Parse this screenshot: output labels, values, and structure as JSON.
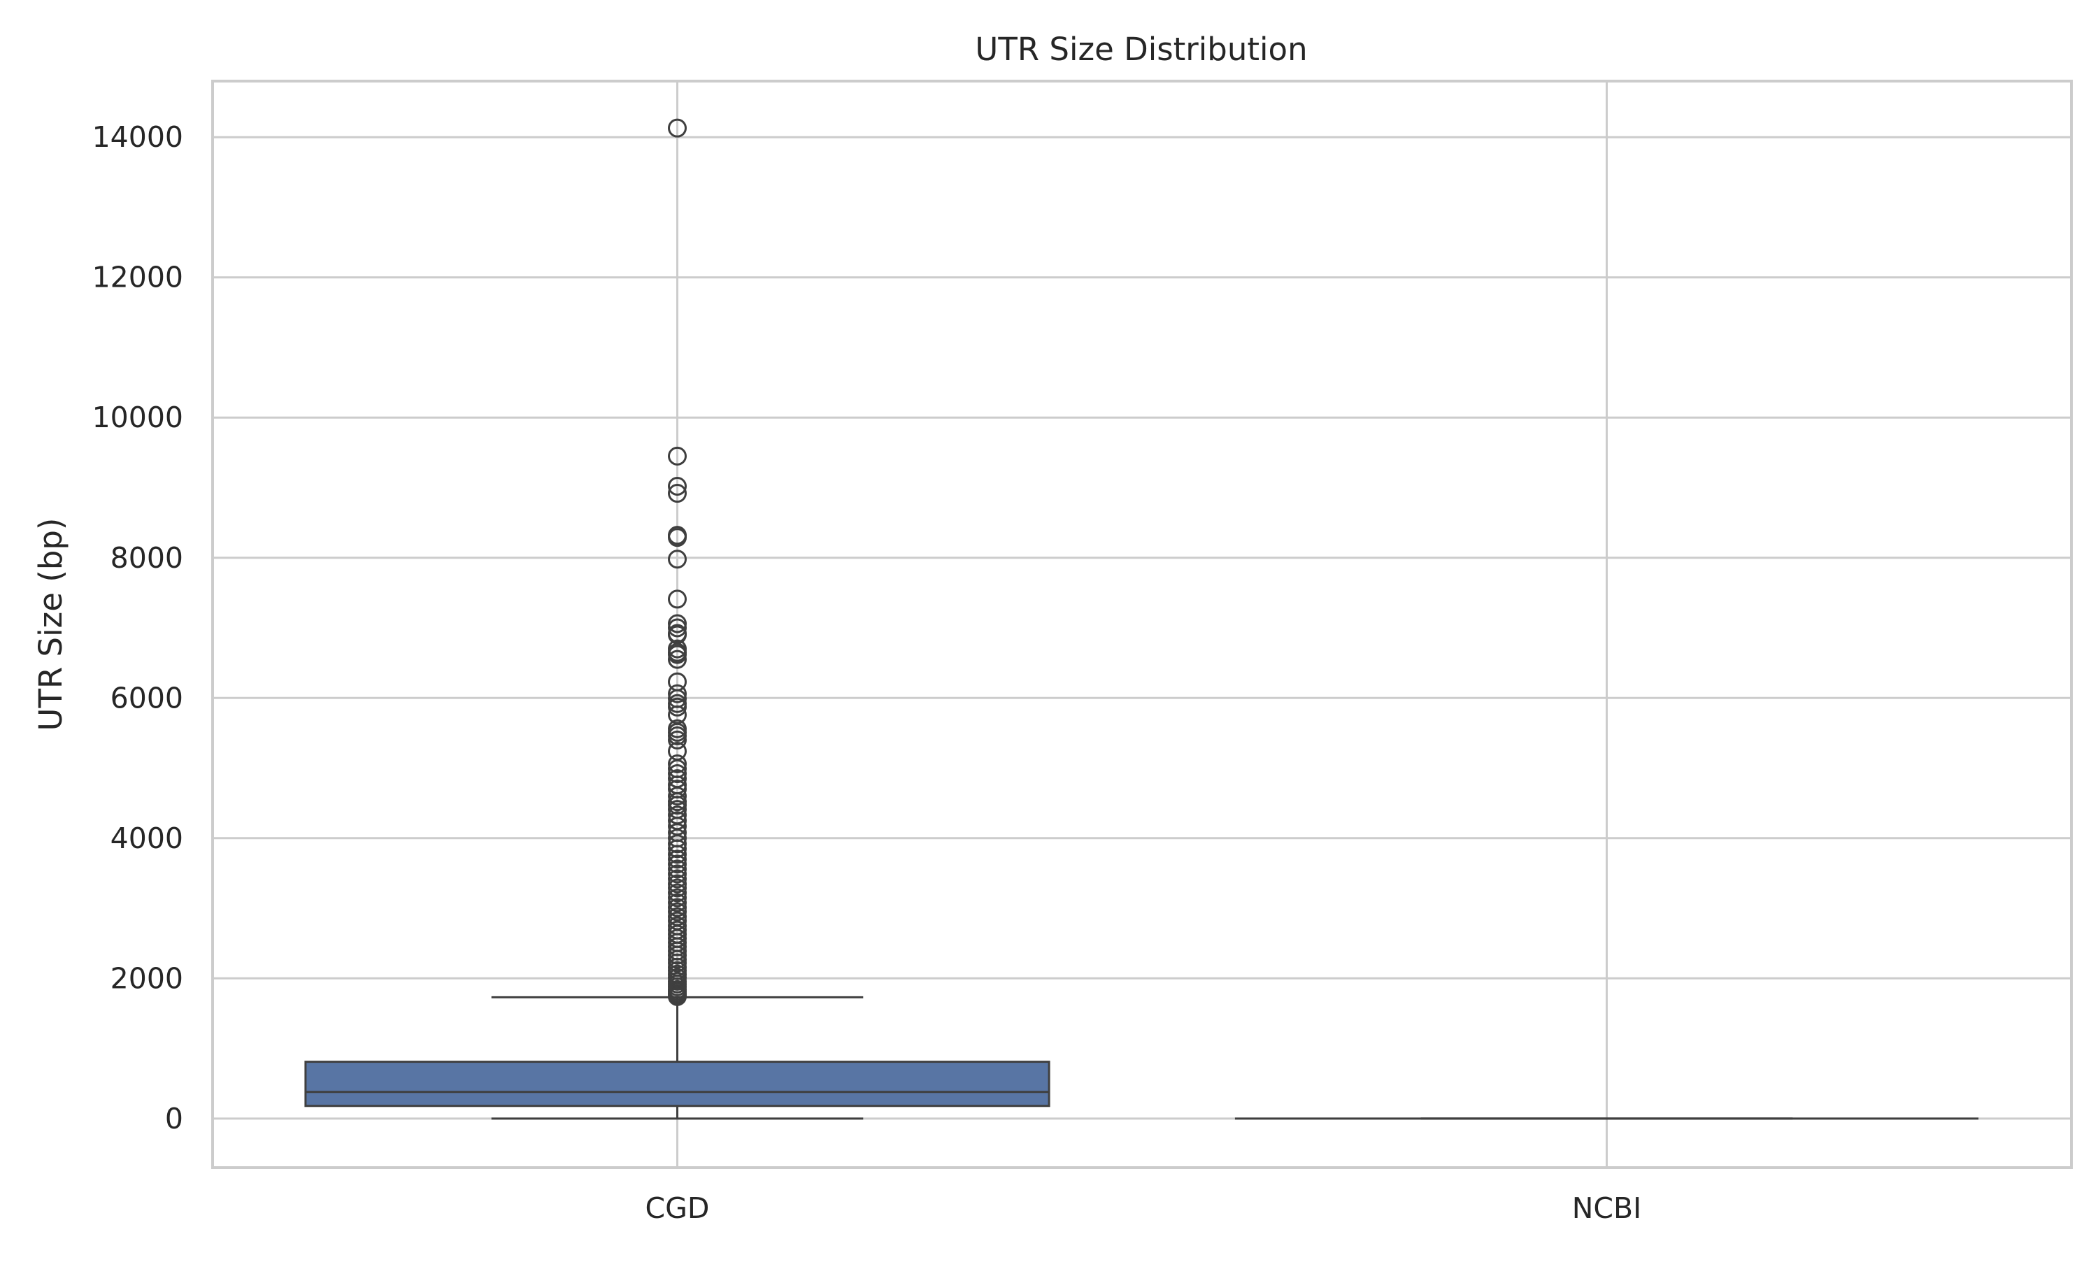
{
  "chart_data": {
    "type": "box",
    "title": "UTR Size Distribution",
    "xlabel": "",
    "ylabel": "UTR Size (bp)",
    "ylim": [
      -700,
      14800
    ],
    "yticks": [
      0,
      2000,
      4000,
      6000,
      8000,
      10000,
      12000,
      14000
    ],
    "grid": true,
    "categories": [
      "CGD",
      "NCBI"
    ],
    "box_color": "#5875a4",
    "edge_color": "#3f3f3f",
    "grid_color": "#cccccc",
    "series": [
      {
        "category": "CGD",
        "whisker_low": 0,
        "q1": 180,
        "median": 380,
        "q3": 810,
        "whisker_high": 1730,
        "outliers": [
          14130,
          9450,
          9020,
          8920,
          8320,
          8290,
          7980,
          7410,
          7060,
          7000,
          6920,
          6900,
          6700,
          6650,
          6620,
          6550,
          6230,
          6060,
          5990,
          5920,
          5870,
          5760,
          5560,
          5510,
          5460,
          5400,
          5240,
          5060,
          4990,
          4920,
          4850,
          4760,
          4700,
          4600,
          4520,
          4470,
          4410,
          4330,
          4250,
          4170,
          4080,
          4000,
          3920,
          3850,
          3770,
          3700,
          3630,
          3560,
          3490,
          3420,
          3350,
          3290,
          3220,
          3150,
          3080,
          3010,
          2950,
          2880,
          2820,
          2750,
          2690,
          2630,
          2570,
          2510,
          2450,
          2390,
          2330,
          2270,
          2220,
          2160,
          2110,
          2060,
          2010,
          1960,
          1920,
          1880,
          1840,
          1810,
          1780,
          1760,
          1740
        ]
      },
      {
        "category": "NCBI",
        "whisker_low": 0,
        "q1": 0,
        "median": 0,
        "q3": 0,
        "whisker_high": 0,
        "outliers": []
      }
    ]
  }
}
